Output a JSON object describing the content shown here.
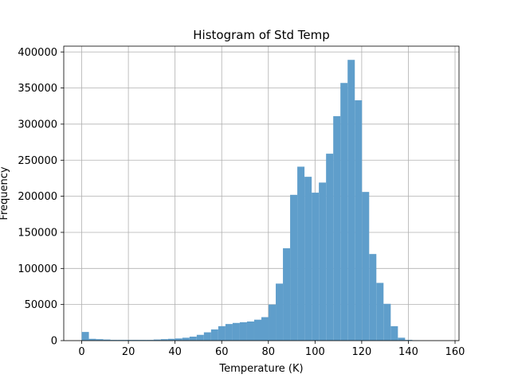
{
  "chart_data": {
    "type": "bar",
    "title": "Histogram of Std Temp",
    "xlabel": "Temperature (K)",
    "ylabel": "Frequency",
    "xlim": [
      -7.7,
      161.7
    ],
    "ylim": [
      0,
      408000
    ],
    "xticks": [
      0,
      20,
      40,
      60,
      80,
      100,
      120,
      140,
      160
    ],
    "xtick_labels": [
      "0",
      "20",
      "40",
      "60",
      "80",
      "100",
      "120",
      "140",
      "160"
    ],
    "yticks": [
      0,
      50000,
      100000,
      150000,
      200000,
      250000,
      300000,
      350000,
      400000
    ],
    "ytick_labels": [
      "0",
      "50000",
      "100000",
      "150000",
      "200000",
      "250000",
      "300000",
      "350000",
      "400000"
    ],
    "grid": true,
    "bar_color": "#5f9ecb",
    "bin_edges": [
      0.0,
      3.08,
      6.16,
      9.24,
      12.32,
      15.4,
      18.48,
      21.56,
      24.64,
      27.72,
      30.8,
      33.88,
      36.96,
      40.04,
      43.12,
      46.2,
      49.28,
      52.36,
      55.44,
      58.52,
      61.6,
      64.68,
      67.76,
      70.84,
      73.92,
      77.0,
      80.08,
      83.16,
      86.24,
      89.32,
      92.4,
      95.48,
      98.56,
      101.64,
      104.72,
      107.8,
      110.88,
      113.96,
      117.04,
      120.12,
      123.2,
      126.28,
      129.36,
      132.44,
      135.52,
      138.6,
      141.68,
      144.76,
      147.84,
      150.92,
      154.0
    ],
    "values": [
      12000,
      2500,
      2000,
      1500,
      1000,
      1000,
      1000,
      1000,
      1000,
      1000,
      1500,
      2000,
      2500,
      3000,
      4000,
      5500,
      8000,
      11500,
      15500,
      20000,
      23000,
      24500,
      25500,
      26500,
      29000,
      32500,
      50000,
      79000,
      128000,
      202000,
      241000,
      227000,
      205000,
      219000,
      259000,
      311000,
      357000,
      389000,
      333000,
      206000,
      120000,
      80000,
      51000,
      20000,
      4000,
      1000,
      500,
      0,
      0,
      0
    ]
  }
}
